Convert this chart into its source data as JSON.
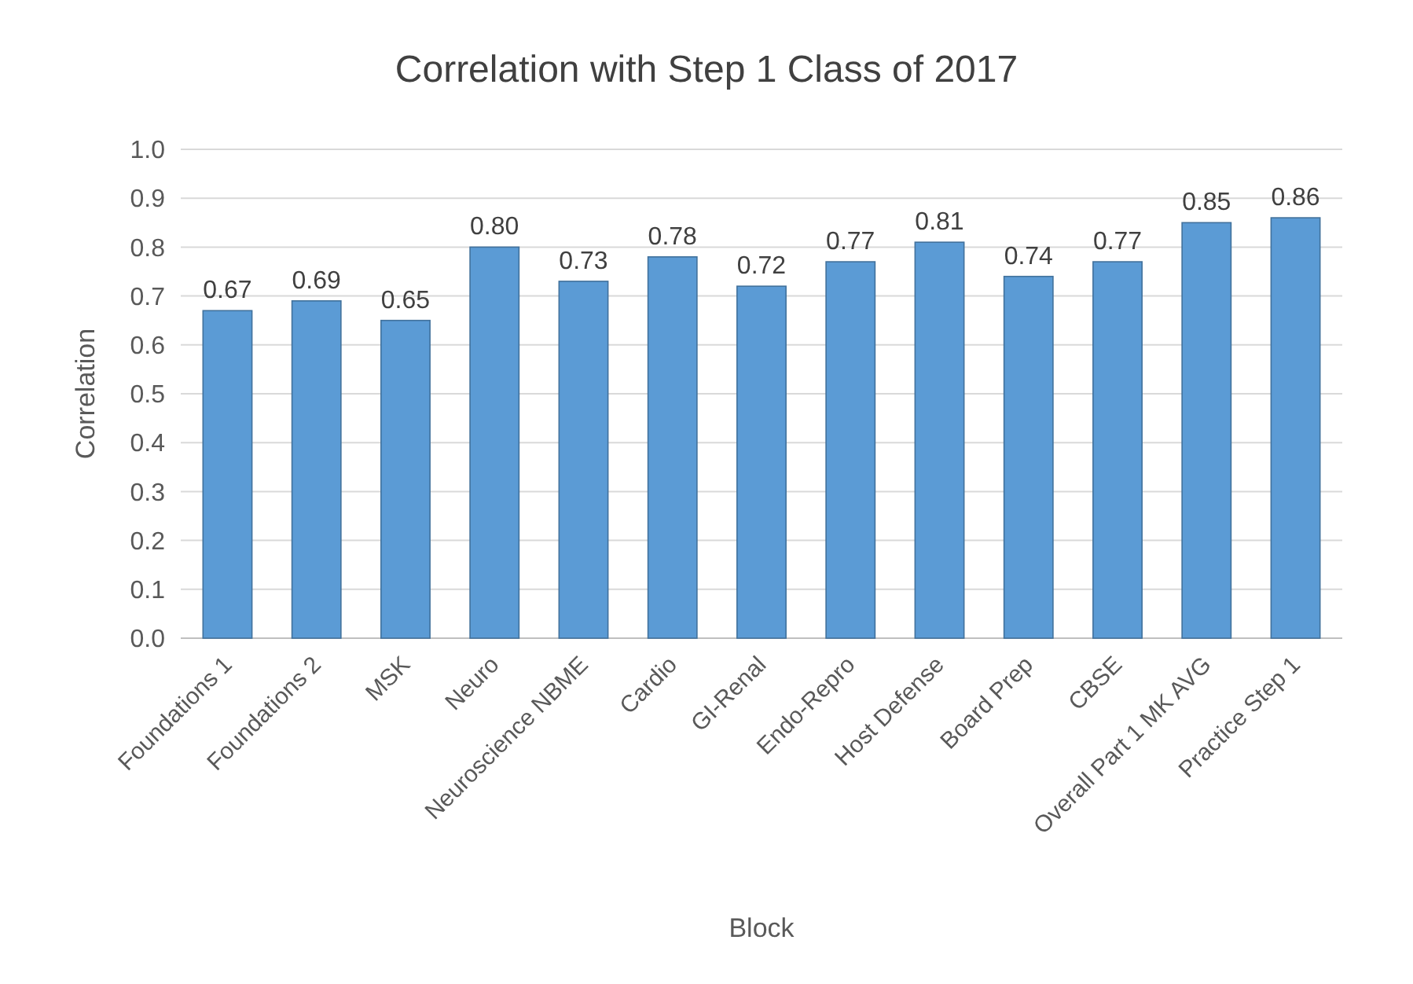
{
  "chart_data": {
    "type": "bar",
    "title": "Correlation with Step 1 Class of 2017",
    "xlabel": "Block",
    "ylabel": "Correlation",
    "categories": [
      "Foundations 1",
      "Foundations 2",
      "MSK",
      "Neuro",
      "Neuroscience NBME",
      "Cardio",
      "GI-Renal",
      "Endo-Repro",
      "Host Defense",
      "Board Prep",
      "CBSE",
      "Overall Part 1 MK AVG",
      "Practice Step 1"
    ],
    "values": [
      0.67,
      0.69,
      0.65,
      0.8,
      0.73,
      0.78,
      0.72,
      0.77,
      0.81,
      0.74,
      0.77,
      0.85,
      0.86
    ],
    "value_labels": [
      "0.67",
      "0.69",
      "0.65",
      "0.80",
      "0.73",
      "0.78",
      "0.72",
      "0.77",
      "0.81",
      "0.74",
      "0.77",
      "0.85",
      "0.86"
    ],
    "color": "#5b9bd5",
    "ylim": [
      0,
      1
    ],
    "yticks": [
      {
        "value": 0,
        "label": "0.0"
      },
      {
        "value": 0.1,
        "label": "0.1"
      },
      {
        "value": 0.2,
        "label": "0.2"
      },
      {
        "value": 0.3,
        "label": "0.3"
      },
      {
        "value": 0.4,
        "label": "0.4"
      },
      {
        "value": 0.5,
        "label": "0.5"
      },
      {
        "value": 0.6,
        "label": "0.6"
      },
      {
        "value": 0.7,
        "label": "0.7"
      },
      {
        "value": 0.8,
        "label": "0.8"
      },
      {
        "value": 0.9,
        "label": "0.9"
      },
      {
        "value": 1,
        "label": "1.0"
      }
    ],
    "grid": "y"
  }
}
